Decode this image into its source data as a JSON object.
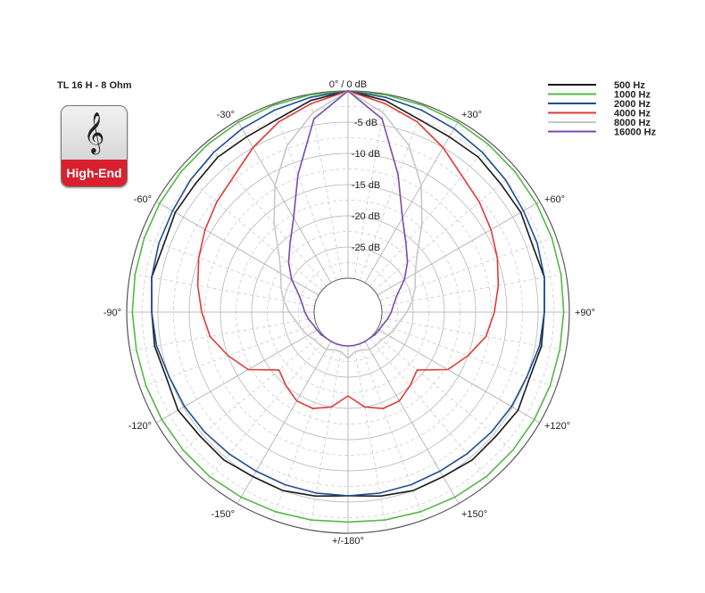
{
  "title": "TL 16 H - 8 Ohm",
  "badge": {
    "icon": "treble-clef-icon",
    "label": "High-End",
    "color": "#d8202e"
  },
  "chart_data": {
    "type": "polar-line",
    "angle_unit": "degrees",
    "angle_range": [
      -180,
      180
    ],
    "radial_range_db": [
      -30,
      0
    ],
    "angle_labels": [
      {
        "angle": 0,
        "text": "0° / 0 dB"
      },
      {
        "angle": 30,
        "text": "+30°"
      },
      {
        "angle": 60,
        "text": "+60°"
      },
      {
        "angle": 90,
        "text": "+90°"
      },
      {
        "angle": 120,
        "text": "+120°"
      },
      {
        "angle": 150,
        "text": "+150°"
      },
      {
        "angle": 180,
        "text": "+/-180°"
      },
      {
        "angle": -150,
        "text": "-150°"
      },
      {
        "angle": -120,
        "text": "-120°"
      },
      {
        "angle": -90,
        "text": "-90°"
      },
      {
        "angle": -60,
        "text": "-60°"
      },
      {
        "angle": -30,
        "text": "-30°"
      }
    ],
    "radial_labels": [
      {
        "db": -5,
        "text": "-5 dB"
      },
      {
        "db": -10,
        "text": "-10 dB"
      },
      {
        "db": -15,
        "text": "-15 dB"
      },
      {
        "db": -20,
        "text": "-20 dB"
      },
      {
        "db": -25,
        "text": "-25 dB"
      }
    ],
    "series": [
      {
        "name": "500 Hz",
        "color": "#1a1a1a",
        "angles": [
          0,
          10,
          20,
          30,
          40,
          50,
          60,
          70,
          80,
          90,
          100,
          110,
          120,
          130,
          140,
          150,
          160,
          170,
          180
        ],
        "values": [
          0,
          -1,
          -2.5,
          -3,
          -3,
          -3.5,
          -3.5,
          -4,
          -3.5,
          -4,
          -4,
          -4.5,
          -4,
          -4.5,
          -4.5,
          -5,
          -5,
          -5.5,
          -6
        ]
      },
      {
        "name": "1000 Hz",
        "color": "#55b848",
        "angles": [
          0,
          10,
          20,
          30,
          40,
          50,
          60,
          70,
          80,
          90,
          100,
          110,
          120,
          130,
          140,
          150,
          160,
          170,
          180
        ],
        "values": [
          0,
          -0.1,
          -0.2,
          -0.3,
          -0.4,
          -0.5,
          -0.6,
          -0.7,
          -0.8,
          -0.9,
          -1,
          -1,
          -1,
          -1,
          -1,
          -1.2,
          -1.4,
          -1.6,
          -1.8
        ]
      },
      {
        "name": "2000 Hz",
        "color": "#1f4e96",
        "angles": [
          0,
          10,
          20,
          30,
          40,
          50,
          60,
          70,
          80,
          90,
          100,
          110,
          120,
          130,
          140,
          150,
          160,
          170,
          180
        ],
        "values": [
          0,
          -0.5,
          -1,
          -1.5,
          -2,
          -2.5,
          -3,
          -3.2,
          -3.5,
          -4,
          -4.3,
          -5,
          -5.2,
          -5.5,
          -5.8,
          -6,
          -6,
          -6,
          -6
        ]
      },
      {
        "name": "4000 Hz",
        "color": "#e03b38",
        "angles": [
          0,
          10,
          20,
          30,
          40,
          50,
          60,
          70,
          80,
          90,
          100,
          110,
          120,
          130,
          140,
          150,
          160,
          170,
          180
        ],
        "values": [
          0,
          -1.5,
          -3,
          -5,
          -7,
          -8,
          -9,
          -10,
          -11,
          -12,
          -13,
          -15,
          -17,
          -21,
          -20,
          -19,
          -19,
          -20,
          -22
        ]
      },
      {
        "name": "8000 Hz",
        "color": "#c8c8c8",
        "angles": [
          0,
          10,
          20,
          30,
          40,
          50,
          60,
          70,
          80,
          90,
          100,
          110,
          120,
          130,
          140,
          150,
          160,
          170,
          180
        ],
        "values": [
          0,
          -3,
          -7,
          -12,
          -17,
          -21,
          -23,
          -24,
          -25,
          -26,
          -27,
          -27.5,
          -28,
          -28.5,
          -28.5,
          -28.5,
          -29,
          -29,
          -28
        ]
      },
      {
        "name": "16000 Hz",
        "color": "#7a4ba8",
        "angles": [
          0,
          10,
          20,
          30,
          40,
          50,
          60,
          70,
          80,
          90,
          100,
          110,
          120,
          130,
          140,
          150,
          160,
          170,
          180
        ],
        "values": [
          0,
          -4,
          -12,
          -18,
          -21,
          -23,
          -25,
          -27,
          -28,
          -28.5,
          -29,
          -29.5,
          -29.7,
          -29.8,
          -30,
          -30,
          -30,
          -30,
          -30
        ]
      }
    ],
    "legend_position": "top-right",
    "grid": true
  }
}
